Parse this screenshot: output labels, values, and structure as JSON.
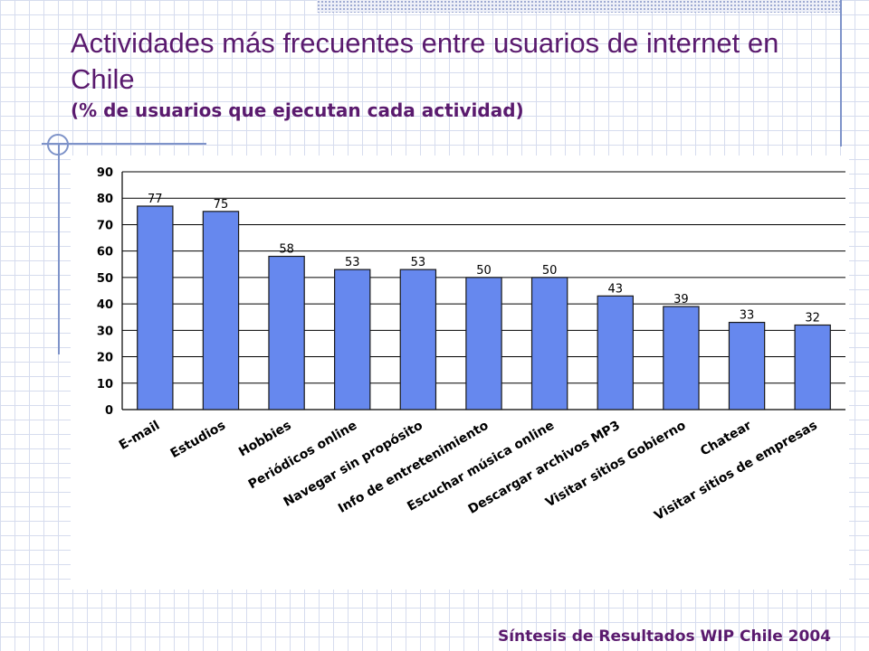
{
  "slide": {
    "title": "Actividades más frecuentes entre usuarios de internet en Chile",
    "subtitle": "(% de usuarios que ejecutan cada actividad)",
    "footer": "Síntesis de Resultados WIP Chile 2004"
  },
  "colors": {
    "bar_fill": "#6688ee",
    "bar_stroke": "#1a1a1a",
    "title": "#5a1a6e",
    "accent_lines": "#7e93c9"
  },
  "chart_data": {
    "type": "bar",
    "categories": [
      "E-mail",
      "Estudios",
      "Hobbies",
      "Periódicos online",
      "Navegar sin propósito",
      "Info de entretenimiento",
      "Escuchar música online",
      "Descargar archivos MP3",
      "Visitar sitios Gobierno",
      "Chatear",
      "Visitar sitios de empresas"
    ],
    "values": [
      77,
      75,
      58,
      53,
      53,
      50,
      50,
      43,
      39,
      33,
      32
    ],
    "data_labels": [
      "77",
      "75",
      "58",
      "53",
      "53",
      "50",
      "50",
      "43",
      "39",
      "33",
      "32"
    ],
    "ylim": [
      0,
      90
    ],
    "yticks": [
      "0",
      "10",
      "20",
      "30",
      "40",
      "50",
      "60",
      "70",
      "80",
      "90"
    ],
    "grid": true,
    "legend": false
  }
}
